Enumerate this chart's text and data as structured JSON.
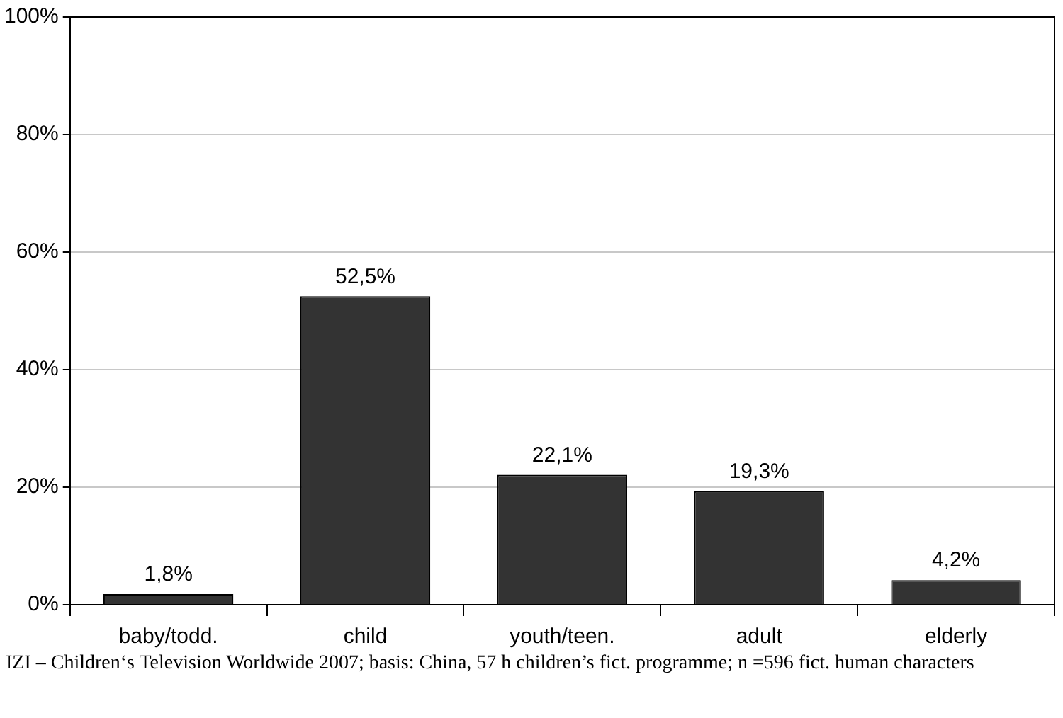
{
  "chart_data": {
    "type": "bar",
    "categories": [
      "baby/todd.",
      "child",
      "youth/teen.",
      "adult",
      "elderly"
    ],
    "values": [
      1.8,
      52.5,
      22.1,
      19.3,
      4.2
    ],
    "value_labels": [
      "1,8%",
      "52,5%",
      "22,1%",
      "19,3%",
      "4,2%"
    ],
    "color": "#333333",
    "ylim": [
      0,
      100
    ],
    "yticks": [
      {
        "value": 0,
        "label": "0%"
      },
      {
        "value": 20,
        "label": "20%"
      },
      {
        "value": 40,
        "label": "40%"
      },
      {
        "value": 60,
        "label": "60%"
      },
      {
        "value": 80,
        "label": "80%"
      },
      {
        "value": 100,
        "label": "100%"
      }
    ],
    "grid": "y",
    "legend": false,
    "annotations": [
      "IZI – Children‘s Television Worldwide 2007; basis: China, 57 h children’s fict. programme; n =596 fict. human  characters"
    ]
  }
}
